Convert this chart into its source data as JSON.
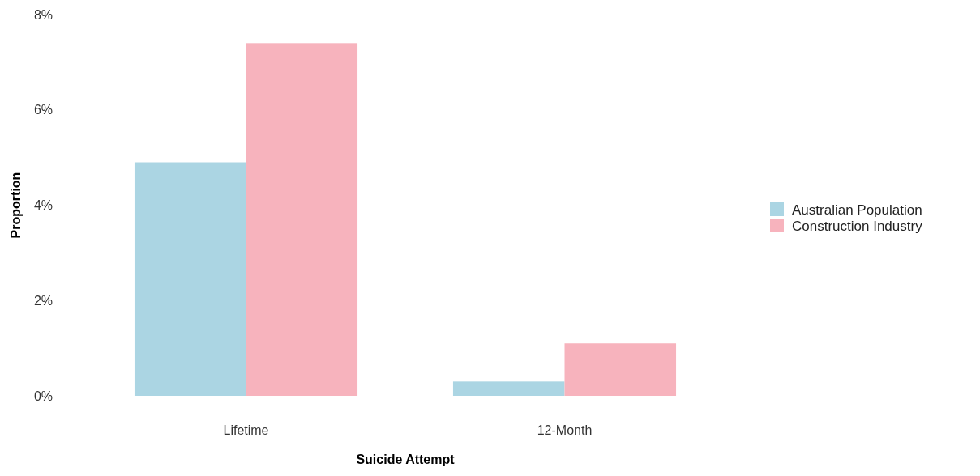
{
  "chart_data": {
    "type": "bar",
    "xlabel": "Suicide Attempt",
    "ylabel": "Proportion",
    "categories": [
      "Lifetime",
      "12-Month"
    ],
    "series": [
      {
        "name": "Australian Population",
        "color": "#abd5e3",
        "values": [
          4.9,
          0.3
        ]
      },
      {
        "name": "Construction Industry",
        "color": "#f7b3bd",
        "values": [
          7.4,
          1.1
        ]
      }
    ],
    "ylim": [
      0,
      8
    ],
    "yticks": [
      {
        "value": 0,
        "label": "0%"
      },
      {
        "value": 2,
        "label": "2%"
      },
      {
        "value": 4,
        "label": "4%"
      },
      {
        "value": 6,
        "label": "6%"
      },
      {
        "value": 8,
        "label": "8%"
      }
    ],
    "grid": false,
    "legend": "right"
  }
}
